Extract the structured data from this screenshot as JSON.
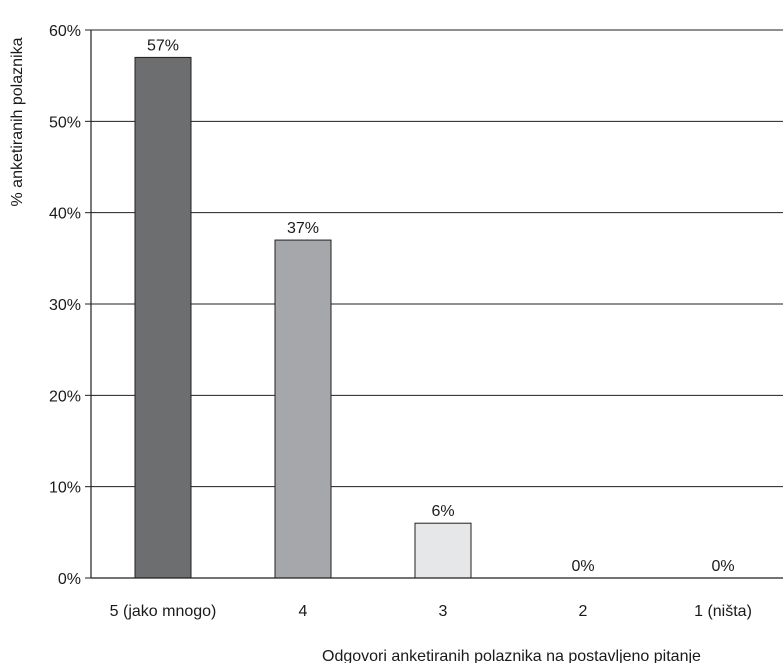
{
  "chart_data": {
    "type": "bar",
    "categories": [
      "5 (jako mnogo)",
      "4",
      "3",
      "2",
      "1 (ništa)"
    ],
    "values": [
      57,
      37,
      6,
      0,
      0
    ],
    "data_labels": [
      "57%",
      "37%",
      "6%",
      "0%",
      "0%"
    ],
    "ylabel": "% anketiranih polaznika",
    "xlabel": "Odgovori anketiranih polaznika na postavljeno pitanje",
    "ylim": [
      0,
      60
    ],
    "yticks": [
      0,
      10,
      20,
      30,
      40,
      50,
      60
    ],
    "ytick_labels": [
      "0%",
      "10%",
      "20%",
      "30%",
      "40%",
      "50%",
      "60%"
    ],
    "grid": true,
    "legend": "none",
    "colors": {
      "bars": [
        "#6d6e70",
        "#a6a7aa",
        "#e6e7e8",
        "#e6e7e8",
        "#e6e7e8"
      ],
      "bar_stroke": "#231f20",
      "grid": "#231f20",
      "axis": "#231f20"
    }
  }
}
